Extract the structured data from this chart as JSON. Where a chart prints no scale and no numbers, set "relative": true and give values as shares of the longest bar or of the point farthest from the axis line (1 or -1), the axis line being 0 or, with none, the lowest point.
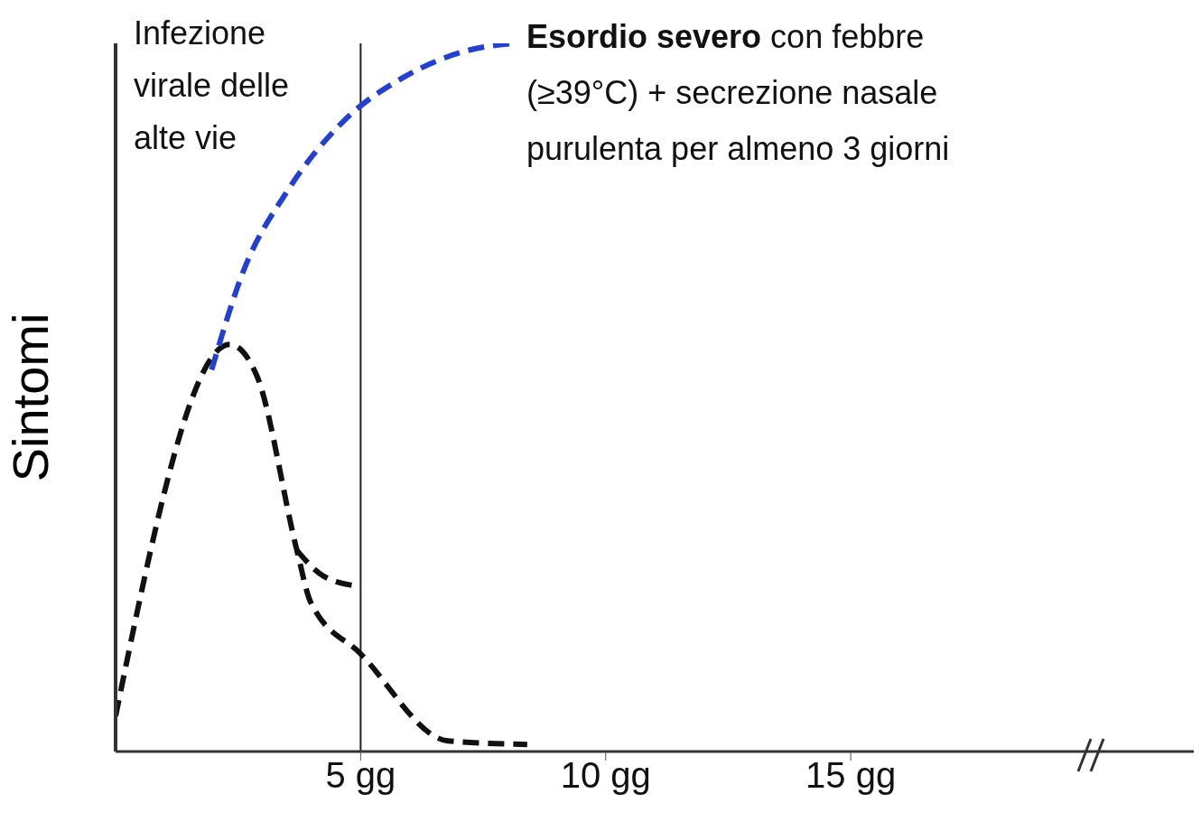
{
  "chart_data": {
    "type": "line",
    "relative": true,
    "ylabel": "Sintomi",
    "line_style": "dashed",
    "marker": "none",
    "grid": false,
    "legend": false,
    "xlim": [
      0,
      22
    ],
    "xticks": [
      {
        "value": 5,
        "label": "5 gg"
      },
      {
        "value": 10,
        "label": "10 gg"
      },
      {
        "value": 15,
        "label": "15 gg"
      }
    ],
    "ref_lines": [
      {
        "axis": "x",
        "value": 5,
        "label": null,
        "color": "#222222"
      }
    ],
    "annotations": [
      "Infezione virale delle alte vie",
      "Esordio severo con febbre (≥39°C) + secrezione nasale purulenta per almeno 3 giorni"
    ],
    "series": [
      {
        "color": "#111111",
        "x": [
          0,
          2.33,
          2.88,
          3.7,
          3.98,
          5,
          6.78,
          8.4
        ],
        "values": [
          0.05,
          0.575,
          0.531,
          0.284,
          0.211,
          0.138,
          0.015,
          0.01
        ]
      },
      {
        "color": "#111111",
        "x": [
          3.7,
          4.26,
          5
        ],
        "values": [
          0.284,
          0.247,
          0.233
        ]
      },
      {
        "color": "#2340d0",
        "x": [
          1.96,
          2.6,
          3.52,
          4.62,
          5.9,
          7.19,
          8.1
        ],
        "values": [
          0.539,
          0.677,
          0.793,
          0.888,
          0.953,
          0.99,
          1.0
        ]
      }
    ]
  }
}
